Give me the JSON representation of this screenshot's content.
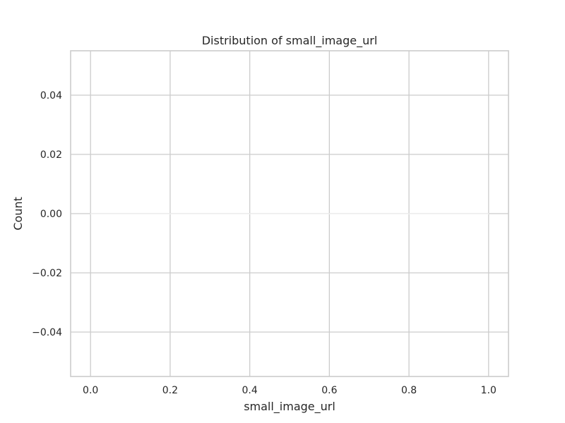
{
  "chart_data": {
    "type": "bar",
    "title": "Distribution of small_image_url",
    "xlabel": "small_image_url",
    "ylabel": "Count",
    "xlim": [
      -0.05,
      1.05
    ],
    "ylim": [
      -0.055,
      0.055
    ],
    "x_ticks": [
      0.0,
      0.2,
      0.4,
      0.6,
      0.8,
      1.0
    ],
    "x_tick_labels": [
      "0.0",
      "0.2",
      "0.4",
      "0.6",
      "0.8",
      "1.0"
    ],
    "y_ticks": [
      0.04,
      0.02,
      0.0,
      -0.02,
      -0.04
    ],
    "y_tick_labels": [
      "0.04",
      "0.02",
      "0.00",
      "−0.02",
      "−0.04"
    ],
    "grid": true,
    "bars": [
      {
        "x_start": 0.0,
        "x_end": 1.0,
        "value": 0
      }
    ],
    "colors": {
      "grid": "#cccccc",
      "spine": "#cccccc",
      "text": "#262626",
      "bar": "#4c72b0"
    }
  }
}
